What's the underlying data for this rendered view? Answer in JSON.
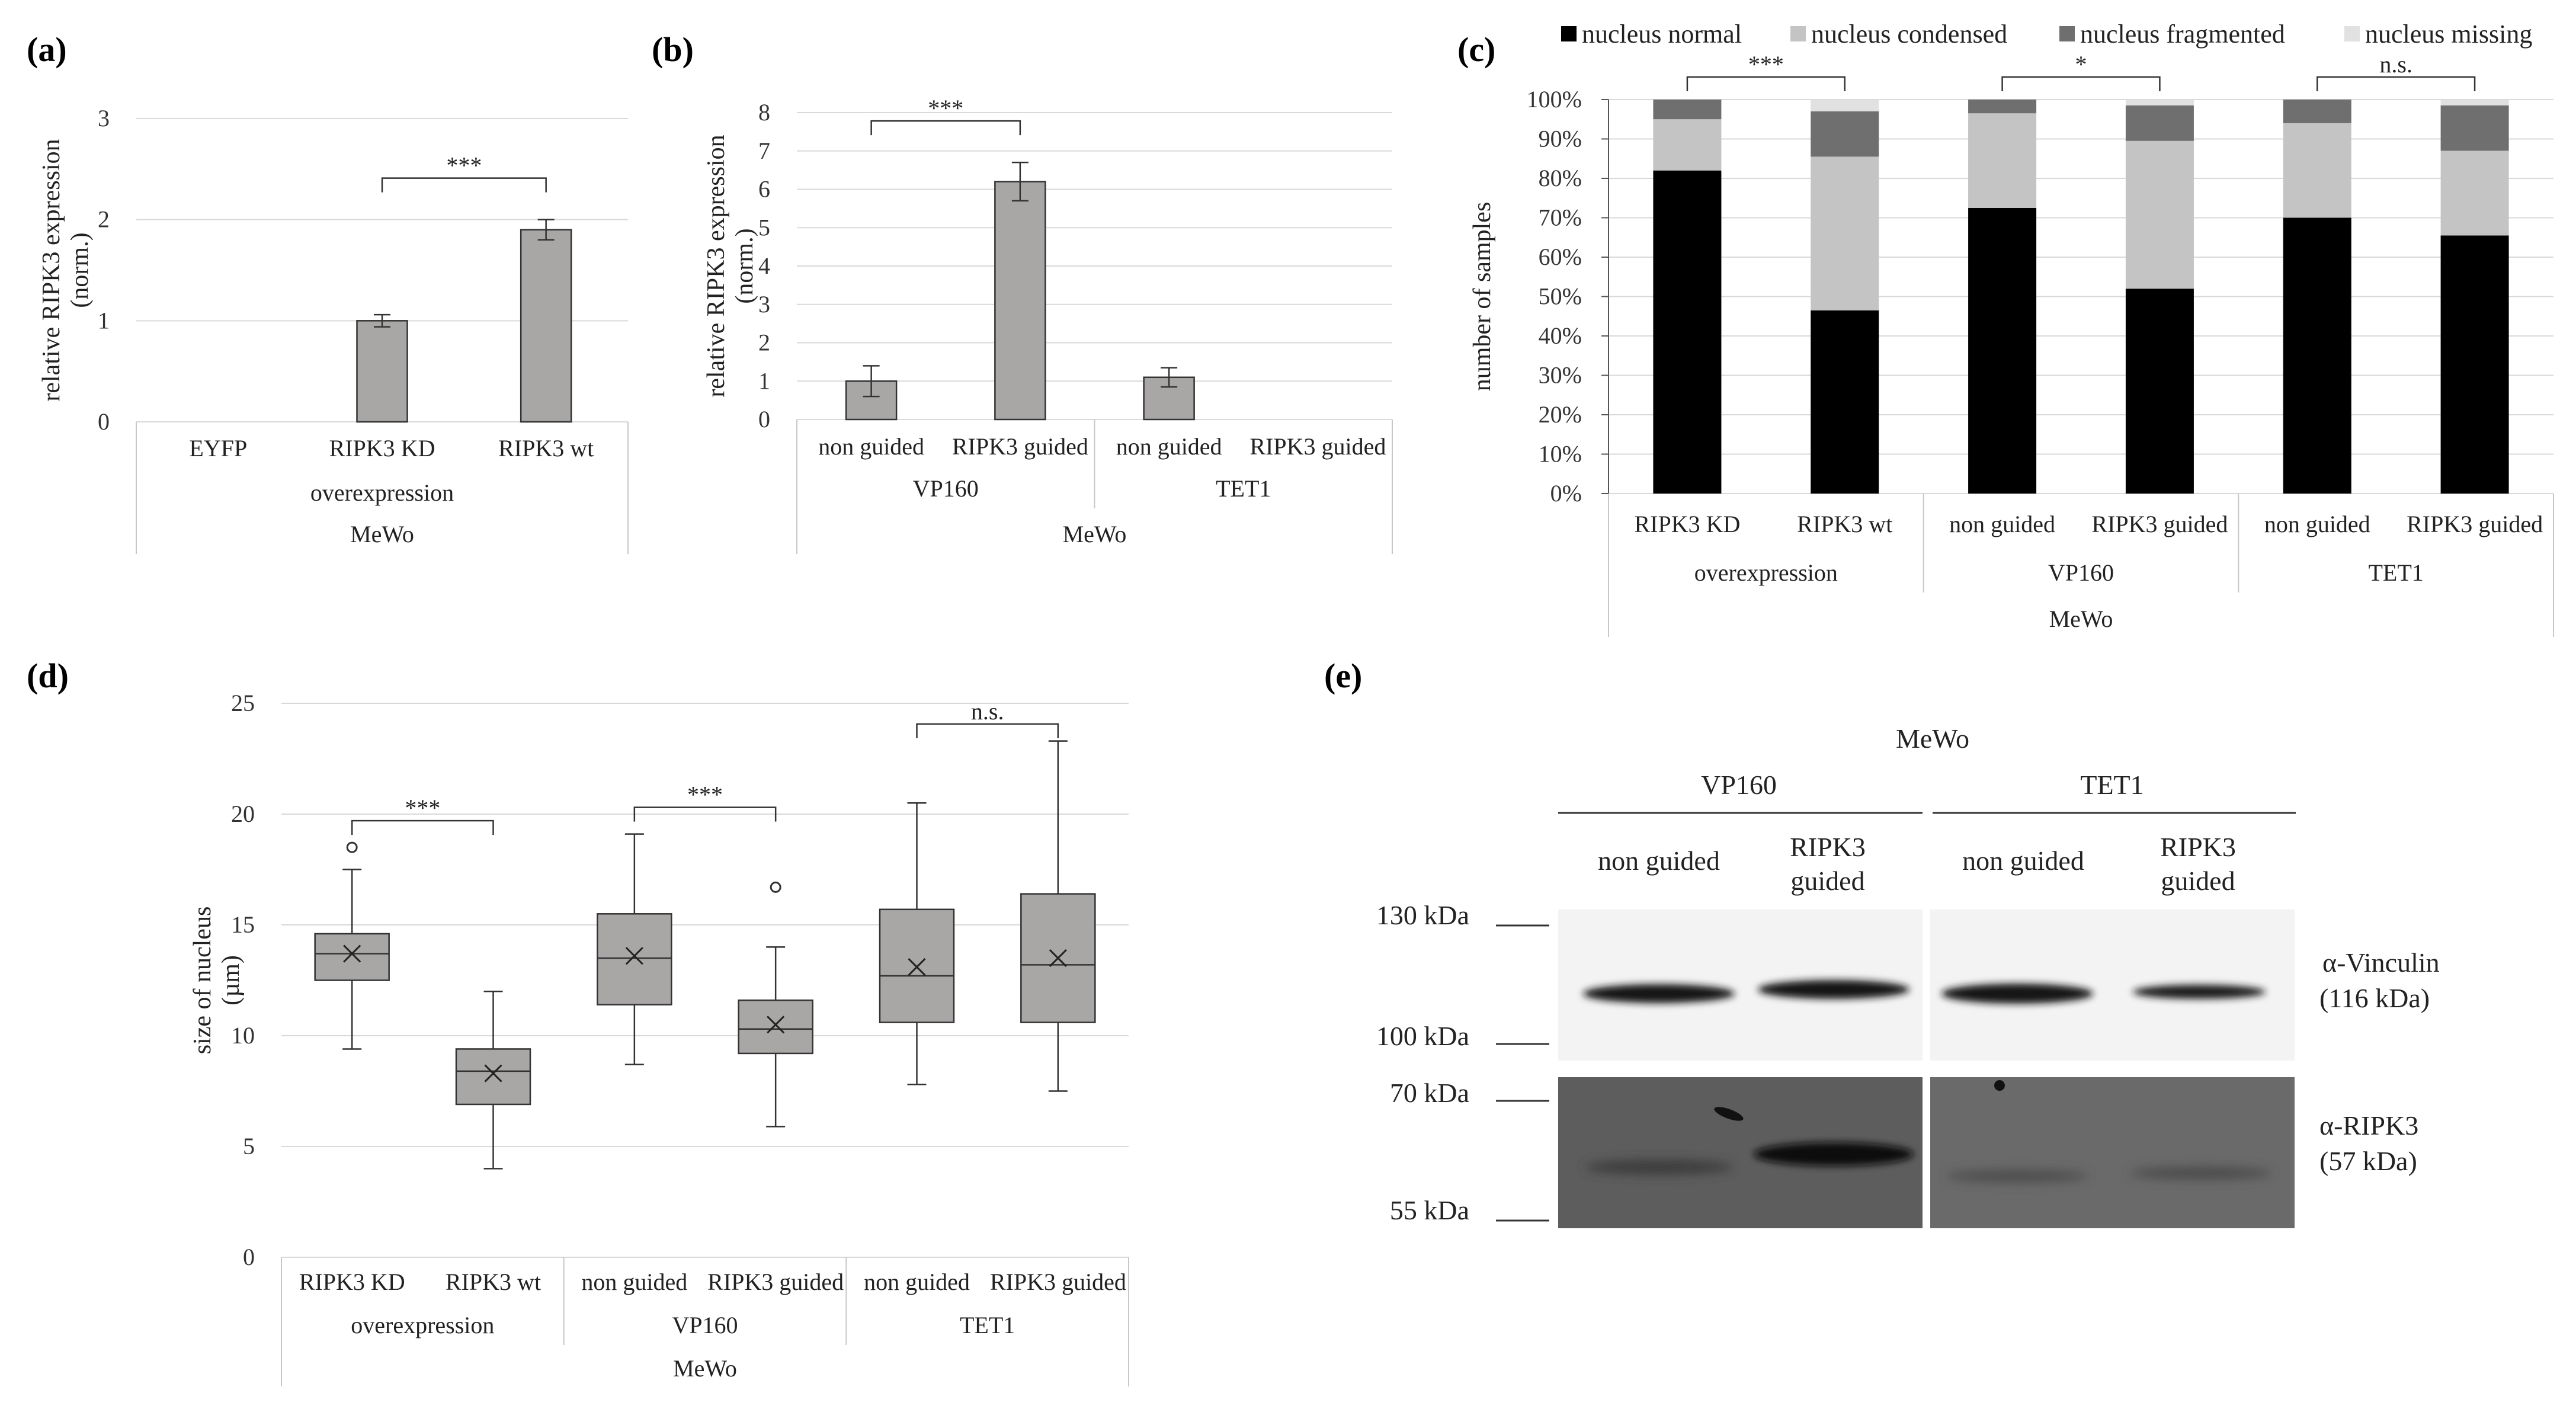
{
  "panel_labels": {
    "a": "(a)",
    "b": "(b)",
    "c": "(c)",
    "d": "(d)",
    "e": "(e)"
  },
  "colors": {
    "bar": "#a9a6a6",
    "normal": "#000000",
    "condensed": "#c4c4c4",
    "fragmented": "#6f6f6f",
    "missing": "#e1e1e1",
    "grid": "#d9d9d9"
  },
  "chart_data": [
    {
      "id": "a",
      "type": "bar",
      "ylabel": "relative RIPK3 expression (norm.)",
      "ylim": [
        0,
        3
      ],
      "yticks": [
        0,
        1,
        2,
        3
      ],
      "categories": [
        "EYFP",
        "RIPK3 KD",
        "RIPK3 wt"
      ],
      "values": [
        0,
        1.0,
        1.9
      ],
      "errors": [
        0,
        0.06,
        0.1
      ],
      "groups": [
        {
          "label": "overexpression",
          "span": [
            0,
            2
          ]
        }
      ],
      "supergroup": "MeWo",
      "significance": [
        {
          "from": 1,
          "to": 2,
          "label": "***"
        }
      ]
    },
    {
      "id": "b",
      "type": "bar",
      "ylabel": "relative RIPK3 expression (norm.)",
      "ylim": [
        0,
        8
      ],
      "yticks": [
        0,
        1,
        2,
        3,
        4,
        5,
        6,
        7,
        8
      ],
      "categories": [
        "non guided",
        "RIPK3 guided",
        "non guided",
        "RIPK3 guided"
      ],
      "values": [
        1.0,
        6.2,
        1.1,
        0
      ],
      "errors": [
        0.4,
        0.5,
        0.25,
        0
      ],
      "groups": [
        {
          "label": "VP160",
          "span": [
            0,
            1
          ]
        },
        {
          "label": "TET1",
          "span": [
            2,
            3
          ]
        }
      ],
      "supergroup": "MeWo",
      "significance": [
        {
          "from": 0,
          "to": 1,
          "label": "***"
        }
      ]
    },
    {
      "id": "c",
      "type": "stacked-bar",
      "ylabel": "number of samples",
      "ylim": [
        0,
        100
      ],
      "yticks": [
        "0%",
        "10%",
        "20%",
        "30%",
        "40%",
        "50%",
        "60%",
        "70%",
        "80%",
        "90%",
        "100%"
      ],
      "categories": [
        "RIPK3 KD",
        "RIPK3 wt",
        "non guided",
        "RIPK3 guided",
        "non guided",
        "RIPK3 guided"
      ],
      "series": [
        {
          "name": "nucleus normal",
          "values": [
            82,
            46.5,
            72.5,
            52,
            70,
            65.5
          ]
        },
        {
          "name": "nucleus condensed",
          "values": [
            13,
            39,
            24,
            37.5,
            24,
            21.5
          ]
        },
        {
          "name": "nucleus fragmented",
          "values": [
            5,
            11.5,
            3.5,
            9,
            6,
            11.5
          ]
        },
        {
          "name": "nucleus missing",
          "values": [
            0,
            3,
            0,
            1.5,
            0,
            1.5
          ]
        }
      ],
      "groups": [
        {
          "label": "overexpression",
          "span": [
            0,
            1
          ]
        },
        {
          "label": "VP160",
          "span": [
            2,
            3
          ]
        },
        {
          "label": "TET1",
          "span": [
            4,
            5
          ]
        }
      ],
      "supergroup": "MeWo",
      "significance": [
        {
          "from": 0,
          "to": 1,
          "label": "***"
        },
        {
          "from": 2,
          "to": 3,
          "label": "*"
        },
        {
          "from": 4,
          "to": 5,
          "label": "n.s."
        }
      ]
    },
    {
      "id": "d",
      "type": "box",
      "ylabel": "size of nucleus (µm)",
      "ylim": [
        0,
        25
      ],
      "yticks": [
        0,
        5,
        10,
        15,
        20,
        25
      ],
      "categories": [
        "RIPK3 KD",
        "RIPK3 wt",
        "non guided",
        "RIPK3 guided",
        "non guided",
        "RIPK3 guided"
      ],
      "boxes": [
        {
          "min": 9.4,
          "q1": 12.5,
          "median": 13.7,
          "q3": 14.6,
          "max": 17.5,
          "mean": 13.7,
          "outliers": [
            18.5
          ]
        },
        {
          "min": 4.0,
          "q1": 6.9,
          "median": 8.4,
          "q3": 9.4,
          "max": 12.0,
          "mean": 8.3,
          "outliers": []
        },
        {
          "min": 8.7,
          "q1": 11.4,
          "median": 13.5,
          "q3": 15.5,
          "max": 19.1,
          "mean": 13.6,
          "outliers": []
        },
        {
          "min": 5.9,
          "q1": 9.2,
          "median": 10.3,
          "q3": 11.6,
          "max": 14.0,
          "mean": 10.5,
          "outliers": [
            16.7
          ]
        },
        {
          "min": 7.8,
          "q1": 10.6,
          "median": 12.7,
          "q3": 15.7,
          "max": 20.5,
          "mean": 13.1,
          "outliers": []
        },
        {
          "min": 7.5,
          "q1": 10.6,
          "median": 13.2,
          "q3": 16.4,
          "max": 23.3,
          "mean": 13.5,
          "outliers": []
        }
      ],
      "groups": [
        {
          "label": "overexpression",
          "span": [
            0,
            1
          ]
        },
        {
          "label": "VP160",
          "span": [
            2,
            3
          ]
        },
        {
          "label": "TET1",
          "span": [
            4,
            5
          ]
        }
      ],
      "supergroup": "MeWo",
      "significance": [
        {
          "from": 0,
          "to": 1,
          "label": "***"
        },
        {
          "from": 2,
          "to": 3,
          "label": "***"
        },
        {
          "from": 4,
          "to": 5,
          "label": "n.s."
        }
      ]
    }
  ],
  "blot": {
    "title": "MeWo",
    "groups": [
      "VP160",
      "TET1"
    ],
    "lanes": [
      "non guided",
      "RIPK3 guided",
      "non guided",
      "RIPK3 guided"
    ],
    "markers": [
      "130 kDa",
      "100 kDa",
      "70 kDa",
      "55 kDa"
    ],
    "bands": [
      {
        "name": "α-Vinculin",
        "size": "(116 kDa)"
      },
      {
        "name": "α-RIPK3",
        "size": "(57 kDa)"
      }
    ]
  }
}
